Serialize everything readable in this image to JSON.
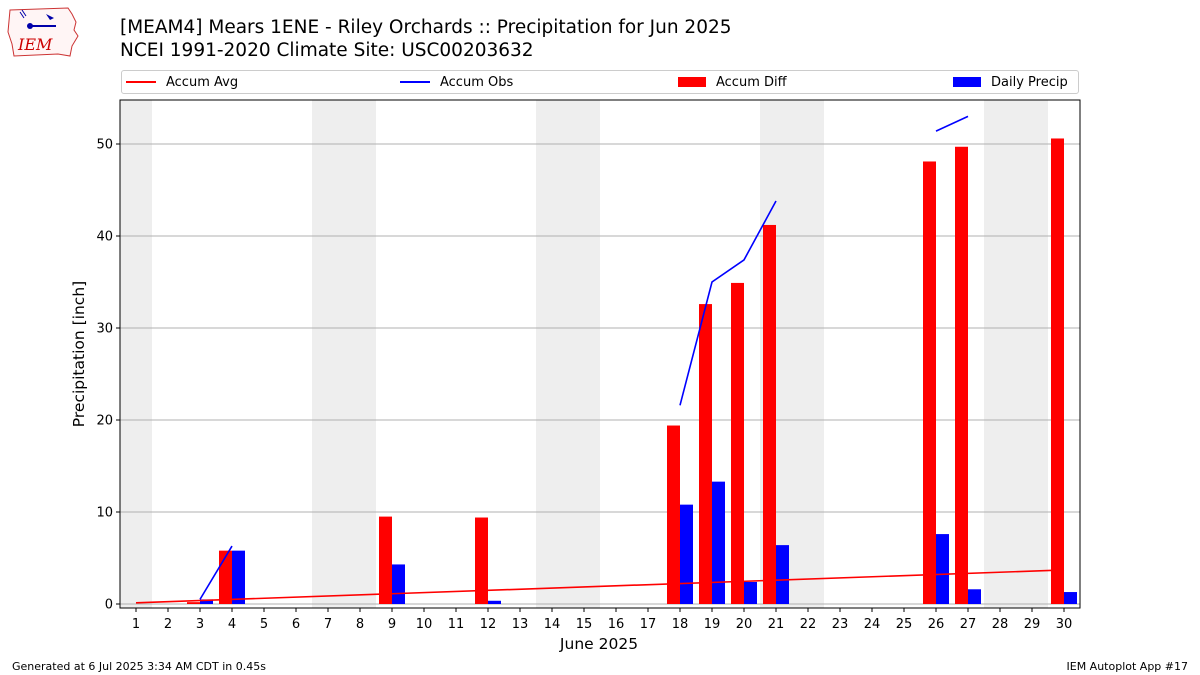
{
  "header": {
    "title_line1": "[MEAM4] Mears 1ENE - Riley Orchards :: Precipitation for Jun 2025",
    "title_line2": "NCEI 1991-2020 Climate Site: USC00203632",
    "logo_text": "IEM"
  },
  "footer": {
    "left": "Generated at 6 Jul 2025 3:34 AM CDT in 0.45s",
    "right": "IEM Autoplot App #17"
  },
  "colors": {
    "accum_avg": "#ff0000",
    "accum_obs": "#0000ff",
    "accum_diff": "#ff0000",
    "daily_precip": "#0000ff",
    "weekend_shade": "#eeeeee",
    "grid": "#b0b0b0"
  },
  "chart_data": {
    "type": "bar",
    "xlabel": "June 2025",
    "ylabel": "Precipitation [inch]",
    "xlim": [
      1,
      30
    ],
    "ylim": [
      0,
      55
    ],
    "y_ticks": [
      0,
      10,
      20,
      30,
      40,
      50
    ],
    "x_ticks": [
      "1",
      "2",
      "3",
      "4",
      "5",
      "6",
      "7",
      "8",
      "9",
      "10",
      "11",
      "12",
      "13",
      "14",
      "15",
      "16",
      "17",
      "18",
      "19",
      "20",
      "21",
      "22",
      "23",
      "24",
      "25",
      "26",
      "27",
      "28",
      "29",
      "30"
    ],
    "grid": "horizontal",
    "legend_position": "top",
    "legend": [
      "Accum Avg",
      "Accum Obs",
      "Accum Diff",
      "Daily Precip"
    ],
    "weekend_days": [
      1,
      7,
      8,
      14,
      15,
      21,
      22,
      28,
      29
    ],
    "accum_avg": {
      "x": [
        1,
        30
      ],
      "y": [
        0.13,
        3.7
      ]
    },
    "accum_obs": [
      {
        "x": [
          3,
          4
        ],
        "y": [
          0.5,
          6.3
        ]
      },
      {
        "x": [
          18,
          19,
          20,
          21
        ],
        "y": [
          21.6,
          35.0,
          37.4,
          43.8
        ]
      },
      {
        "x": [
          26,
          27
        ],
        "y": [
          51.4,
          53.0
        ]
      }
    ],
    "accum_diff": {
      "days": [
        3,
        4,
        9,
        12,
        18,
        19,
        20,
        21,
        26,
        27,
        30
      ],
      "values": [
        0.2,
        5.8,
        9.5,
        9.4,
        19.4,
        32.6,
        34.9,
        41.2,
        48.1,
        49.7,
        50.6
      ]
    },
    "daily_precip": {
      "days": [
        3,
        4,
        9,
        12,
        18,
        19,
        20,
        21,
        26,
        27,
        30
      ],
      "values": [
        0.5,
        5.8,
        4.3,
        0.35,
        10.8,
        13.3,
        2.4,
        6.4,
        7.6,
        1.6,
        1.3
      ]
    }
  }
}
